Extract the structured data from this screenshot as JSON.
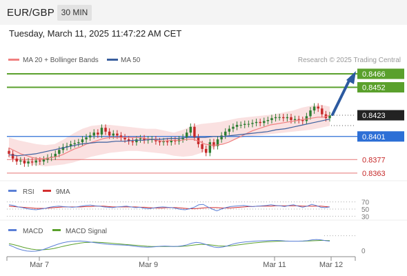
{
  "header": {
    "symbol": "EUR/GBP",
    "timeframe": "30 MIN",
    "datetime": "Tuesday, March 11, 2025 11:47:22 AM CET"
  },
  "legend": {
    "ma20_label": "MA 20 + Bollinger Bands",
    "ma50_label": "MA 50",
    "copyright": "Research © 2025 Trading Central",
    "rsi_label": "RSI",
    "rsi_ma_label": "9MA",
    "macd_label": "MACD",
    "macd_signal_label": "MACD Signal"
  },
  "colors": {
    "ma20": "#f08080",
    "ma50": "#3a5f9e",
    "band": "#f8d7d7",
    "up": "#2e7d32",
    "down": "#c62828",
    "resistance": "#5aa02c",
    "support_line": "#e57373",
    "pivot": "#2d6fd6",
    "rsi": "#5a7fd6",
    "rsi_ma": "#d32f2f",
    "macd": "#5a7fd6",
    "macd_signal": "#5aa02c",
    "arrow": "#2c5aa0"
  },
  "chart_data": [
    {
      "type": "line",
      "name": "price",
      "x_ticks": [
        "Mar 7",
        "Mar 9",
        "Mar 11",
        "Mar 12"
      ],
      "ylim": [
        0.8355,
        0.8471
      ],
      "levels": [
        {
          "value": 0.8466,
          "label": "0.8466",
          "kind": "resistance"
        },
        {
          "value": 0.8452,
          "label": "0.8452",
          "kind": "resistance"
        },
        {
          "value": 0.8423,
          "label": "0.8423",
          "kind": "current"
        },
        {
          "value": 0.8401,
          "label": "0.8401",
          "kind": "pivot"
        },
        {
          "value": 0.8377,
          "label": "0.8377",
          "kind": "support"
        },
        {
          "value": 0.8363,
          "label": "0.8363",
          "kind": "support"
        }
      ],
      "close": [
        0.8383,
        0.8378,
        0.8375,
        0.8376,
        0.8373,
        0.8375,
        0.8374,
        0.8376,
        0.8375,
        0.8377,
        0.8379,
        0.838,
        0.8383,
        0.8387,
        0.839,
        0.8391,
        0.8393,
        0.8394,
        0.8395,
        0.8398,
        0.84,
        0.8402,
        0.8405,
        0.8403,
        0.841,
        0.8406,
        0.8402,
        0.8404,
        0.8402,
        0.84,
        0.8398,
        0.8396,
        0.8395,
        0.8398,
        0.8399,
        0.8397,
        0.8398,
        0.8398,
        0.8396,
        0.8395,
        0.8396,
        0.8395,
        0.8397,
        0.8396,
        0.8398,
        0.84,
        0.8405,
        0.8411,
        0.84,
        0.8393,
        0.8388,
        0.8384,
        0.8395,
        0.8391,
        0.8398,
        0.8402,
        0.8406,
        0.8409,
        0.8411,
        0.8413,
        0.8413,
        0.8414,
        0.8414,
        0.8415,
        0.8416,
        0.8415,
        0.8417,
        0.8418,
        0.842,
        0.8421,
        0.8421,
        0.842,
        0.8421,
        0.8418,
        0.8419,
        0.8418,
        0.8417,
        0.8422,
        0.8428,
        0.8432,
        0.843,
        0.8424,
        0.842,
        0.8423
      ],
      "ma20": [
        0.8389,
        0.8386,
        0.8383,
        0.8381,
        0.8379,
        0.8378,
        0.8378,
        0.8379,
        0.838,
        0.8382,
        0.8385,
        0.8388,
        0.839,
        0.8393,
        0.8395,
        0.8397,
        0.8399,
        0.84,
        0.84,
        0.84,
        0.84,
        0.84,
        0.84,
        0.8399,
        0.8398,
        0.8397,
        0.8396,
        0.8397,
        0.8397,
        0.8397,
        0.8398,
        0.8398,
        0.8396,
        0.8393,
        0.8392,
        0.8392,
        0.8393,
        0.8395,
        0.8398,
        0.8401,
        0.8404,
        0.8407,
        0.8409,
        0.8411,
        0.8413,
        0.8414,
        0.8415,
        0.8416,
        0.8417,
        0.8418,
        0.8419,
        0.842,
        0.8421,
        0.8421,
        0.8423
      ],
      "ma50": [
        0.8382,
        0.8381,
        0.8382,
        0.8383,
        0.8385,
        0.8387,
        0.8389,
        0.8391,
        0.8393,
        0.8394,
        0.8395,
        0.8395,
        0.8396,
        0.8396,
        0.8397,
        0.8397,
        0.8398,
        0.8398,
        0.8399,
        0.8399,
        0.84,
        0.84,
        0.84,
        0.8401,
        0.8401,
        0.8402,
        0.8403,
        0.8404,
        0.8405,
        0.8406,
        0.8408,
        0.8409,
        0.8411,
        0.8413,
        0.8415,
        0.8417,
        0.8419
      ],
      "bb_upper": [
        0.84,
        0.8397,
        0.8395,
        0.8393,
        0.8392,
        0.8393,
        0.8398,
        0.8404,
        0.8409,
        0.8412,
        0.8413,
        0.8413,
        0.8412,
        0.8411,
        0.841,
        0.8409,
        0.8409,
        0.8407,
        0.8405,
        0.8408,
        0.8412,
        0.8414,
        0.8415,
        0.8416,
        0.8418,
        0.842,
        0.8421,
        0.8422,
        0.8423,
        0.8424,
        0.8426,
        0.8428,
        0.8431,
        0.8433,
        0.8434,
        0.8432
      ],
      "bb_lower": [
        0.8379,
        0.8376,
        0.8373,
        0.8371,
        0.837,
        0.8371,
        0.8372,
        0.8374,
        0.8377,
        0.838,
        0.8382,
        0.8384,
        0.8385,
        0.8386,
        0.8386,
        0.8385,
        0.8384,
        0.8383,
        0.8381,
        0.838,
        0.8381,
        0.8384,
        0.8388,
        0.8392,
        0.8396,
        0.8399,
        0.8401,
        0.8402,
        0.8403,
        0.8404,
        0.8405,
        0.8406,
        0.8407,
        0.8408,
        0.841,
        0.8412
      ]
    },
    {
      "type": "line",
      "name": "RSI",
      "yticks": [
        "70",
        "50",
        "30"
      ],
      "ylim": [
        25,
        75
      ],
      "rsi": [
        62,
        60,
        56,
        54,
        51,
        49,
        48,
        50,
        52,
        55,
        57,
        58,
        57,
        56,
        55,
        56,
        58,
        60,
        61,
        59,
        58,
        56,
        55,
        54,
        56,
        57,
        58,
        56,
        54,
        55,
        52,
        51,
        53,
        55,
        56,
        55,
        54,
        52,
        49,
        48,
        51,
        55,
        62,
        63,
        56,
        50,
        45,
        50,
        54,
        57,
        58,
        59,
        60,
        58,
        57,
        58,
        59,
        60,
        62,
        60,
        59,
        57,
        60,
        62,
        58,
        55,
        58,
        63,
        60,
        55,
        54,
        56
      ],
      "rsi_ma": [
        58,
        57,
        56,
        55,
        54,
        53,
        52,
        52,
        52,
        53,
        54,
        55,
        56,
        56,
        56,
        56,
        56,
        57,
        57,
        58,
        58,
        58,
        57,
        56,
        56,
        56,
        56,
        56,
        56,
        55,
        55,
        54,
        53,
        53,
        53,
        54,
        54,
        54,
        53,
        52,
        51,
        51,
        52,
        53,
        54,
        54,
        54,
        53,
        53,
        53,
        54,
        55,
        56,
        57,
        57,
        58,
        58,
        58,
        58,
        59,
        59,
        59,
        59,
        59,
        59,
        58,
        58,
        58,
        58,
        58,
        57,
        56
      ]
    },
    {
      "type": "line",
      "name": "MACD",
      "yticks": [
        "0"
      ],
      "ylim": [
        -0.0006,
        0.0005
      ],
      "macd": [
        -5e-05,
        -0.00015,
        -0.00025,
        -0.00032,
        -0.00037,
        -0.00039,
        -0.00038,
        -0.00034,
        -0.00027,
        -0.00018,
        -9e-05,
        -1e-05,
        6e-05,
        0.00011,
        0.00014,
        0.00015,
        0.00016,
        0.00014,
        0.00011,
        8e-05,
        5e-05,
        2e-05,
        -1e-05,
        -3e-05,
        -4e-05,
        -5e-05,
        -6e-05,
        -8e-05,
        -0.00011,
        -0.00014,
        -0.00016,
        -0.00017,
        -0.00016,
        -0.00014,
        -0.00012,
        -0.00011,
        -0.00012,
        -0.00013,
        -0.00012,
        -9e-05,
        -4e-05,
        4e-05,
        9e-05,
        6e-05,
        -1e-05,
        -9e-05,
        -0.00016,
        -0.00019,
        -0.00016,
        -0.0001,
        -2e-05,
        4e-05,
        8e-05,
        0.00011,
        0.00013,
        0.00015,
        0.00016,
        0.00017,
        0.00018,
        0.00019,
        0.00019,
        0.00018,
        0.00016,
        0.00015,
        0.00015,
        0.00015,
        0.00016,
        0.00018,
        0.00022,
        0.00024,
        0.00022,
        0.00018,
        0.00015
      ],
      "signal": [
        2e-05,
        -3e-05,
        -9e-05,
        -0.00016,
        -0.00022,
        -0.00027,
        -0.0003,
        -0.00031,
        -0.0003,
        -0.00028,
        -0.00024,
        -0.00019,
        -0.00013,
        -8e-05,
        -3e-05,
        1e-05,
        5e-05,
        8e-05,
        9e-05,
        0.0001,
        9e-05,
        8e-05,
        6e-05,
        4e-05,
        2e-05,
        0.0,
        -2e-05,
        -4e-05,
        -6e-05,
        -8e-05,
        -0.0001,
        -0.00012,
        -0.00013,
        -0.00013,
        -0.00013,
        -0.00013,
        -0.00013,
        -0.00013,
        -0.00013,
        -0.00012,
        -0.0001,
        -7e-05,
        -4e-05,
        -2e-05,
        -2e-05,
        -4e-05,
        -7e-05,
        -0.0001,
        -0.00011,
        -0.00011,
        -9e-05,
        -6e-05,
        -3e-05,
        0.0,
        3e-05,
        6e-05,
        8e-05,
        0.0001,
        0.00012,
        0.00013,
        0.00014,
        0.00015,
        0.00015,
        0.00015,
        0.00015,
        0.00015,
        0.00015,
        0.00016,
        0.00017,
        0.00018,
        0.00019,
        0.00019,
        0.00018
      ]
    }
  ]
}
